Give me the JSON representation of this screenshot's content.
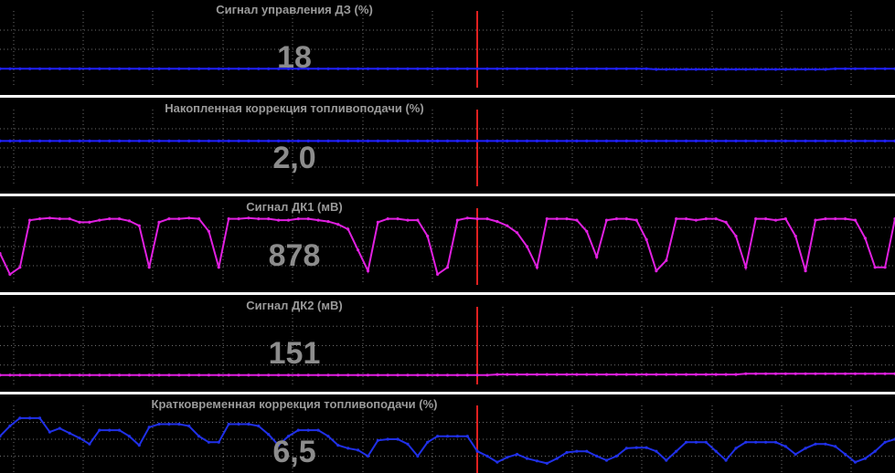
{
  "colors": {
    "background": "#000000",
    "grid": "#6e6e6e",
    "separator": "#ffffff",
    "cursor": "#e02020",
    "label_text": "#9a9a9a",
    "value_text": "#8c8c8c"
  },
  "panels": [
    {
      "title": "Сигнал управления ДЗ  (%)",
      "value": "18",
      "trace_color": "#2020ff",
      "trace": [
        0.22,
        0.22,
        0.22,
        0.22,
        0.22,
        0.22,
        0.22,
        0.22,
        0.22,
        0.22,
        0.22,
        0.22,
        0.22,
        0.22,
        0.22,
        0.22,
        0.22,
        0.22,
        0.22,
        0.22,
        0.22,
        0.22,
        0.22,
        0.22,
        0.22,
        0.22,
        0.22,
        0.22,
        0.22,
        0.22,
        0.22,
        0.22,
        0.22,
        0.22,
        0.22,
        0.22,
        0.22,
        0.22,
        0.22,
        0.22,
        0.22,
        0.22,
        0.22,
        0.22,
        0.22,
        0.22,
        0.22,
        0.22,
        0.22,
        0.22,
        0.22,
        0.22,
        0.22,
        0.22,
        0.22,
        0.22,
        0.22,
        0.22,
        0.22,
        0.22,
        0.22,
        0.22,
        0.22,
        0.22,
        0.22,
        0.22,
        0.21,
        0.21,
        0.21,
        0.21,
        0.21,
        0.21,
        0.21,
        0.21,
        0.21,
        0.21,
        0.21,
        0.21,
        0.21,
        0.21,
        0.21,
        0.21,
        0.21,
        0.21,
        0.22,
        0.22,
        0.22,
        0.22,
        0.22,
        0.22,
        0.22
      ]
    },
    {
      "title": "Накопленная коррекция топливоподачи  (%)",
      "value": "2,0",
      "trace_color": "#2020ff",
      "trace": [
        0.6,
        0.6,
        0.6,
        0.6,
        0.6,
        0.6,
        0.6,
        0.6,
        0.6,
        0.6,
        0.6,
        0.6,
        0.6,
        0.6,
        0.6,
        0.6,
        0.6,
        0.6,
        0.6,
        0.6,
        0.6,
        0.6,
        0.6,
        0.6,
        0.6,
        0.6,
        0.6,
        0.6,
        0.6,
        0.6,
        0.6,
        0.6,
        0.6,
        0.6,
        0.6,
        0.6,
        0.6,
        0.6,
        0.6,
        0.6,
        0.6,
        0.6,
        0.6,
        0.6,
        0.6,
        0.6,
        0.6,
        0.6,
        0.6,
        0.6,
        0.6,
        0.6,
        0.6,
        0.6,
        0.6,
        0.6,
        0.6,
        0.6,
        0.6,
        0.6,
        0.6,
        0.6,
        0.6,
        0.6,
        0.6,
        0.6,
        0.6,
        0.6,
        0.6,
        0.6,
        0.6,
        0.6,
        0.6,
        0.6,
        0.6,
        0.6,
        0.6,
        0.6,
        0.6,
        0.6,
        0.6,
        0.6,
        0.6,
        0.6,
        0.6,
        0.6,
        0.6,
        0.6,
        0.6,
        0.6,
        0.6
      ]
    },
    {
      "title": "Сигнал ДК1  (мВ)",
      "value": "878",
      "trace_color": "#e020e0",
      "trace": [
        0.4,
        0.1,
        0.2,
        0.88,
        0.9,
        0.91,
        0.9,
        0.9,
        0.85,
        0.85,
        0.88,
        0.9,
        0.9,
        0.87,
        0.8,
        0.2,
        0.85,
        0.9,
        0.9,
        0.91,
        0.9,
        0.72,
        0.2,
        0.9,
        0.9,
        0.91,
        0.9,
        0.9,
        0.88,
        0.88,
        0.9,
        0.9,
        0.88,
        0.86,
        0.82,
        0.75,
        0.45,
        0.15,
        0.85,
        0.9,
        0.9,
        0.88,
        0.88,
        0.65,
        0.1,
        0.2,
        0.88,
        0.91,
        0.9,
        0.9,
        0.86,
        0.8,
        0.7,
        0.5,
        0.2,
        0.9,
        0.9,
        0.9,
        0.88,
        0.72,
        0.35,
        0.88,
        0.9,
        0.9,
        0.88,
        0.6,
        0.15,
        0.3,
        0.9,
        0.9,
        0.88,
        0.9,
        0.9,
        0.85,
        0.65,
        0.2,
        0.9,
        0.9,
        0.88,
        0.9,
        0.65,
        0.15,
        0.88,
        0.9,
        0.9,
        0.9,
        0.88,
        0.62,
        0.2,
        0.2,
        0.9
      ]
    },
    {
      "title": "Сигнал ДК2  (мВ)",
      "value": "151",
      "trace_color": "#e020e0",
      "trace": [
        0.08,
        0.08,
        0.08,
        0.08,
        0.08,
        0.08,
        0.08,
        0.08,
        0.08,
        0.08,
        0.08,
        0.08,
        0.08,
        0.08,
        0.08,
        0.08,
        0.08,
        0.08,
        0.08,
        0.08,
        0.08,
        0.08,
        0.08,
        0.08,
        0.08,
        0.08,
        0.08,
        0.08,
        0.08,
        0.08,
        0.08,
        0.08,
        0.08,
        0.08,
        0.08,
        0.08,
        0.08,
        0.08,
        0.08,
        0.08,
        0.08,
        0.08,
        0.08,
        0.08,
        0.08,
        0.08,
        0.08,
        0.08,
        0.08,
        0.08,
        0.09,
        0.09,
        0.09,
        0.09,
        0.09,
        0.09,
        0.09,
        0.09,
        0.09,
        0.09,
        0.09,
        0.09,
        0.09,
        0.09,
        0.09,
        0.09,
        0.09,
        0.09,
        0.09,
        0.09,
        0.09,
        0.09,
        0.09,
        0.09,
        0.09,
        0.1,
        0.1,
        0.1,
        0.1,
        0.1,
        0.1,
        0.1,
        0.1,
        0.1,
        0.1,
        0.1,
        0.1,
        0.1,
        0.1,
        0.1,
        0.1
      ]
    },
    {
      "title": "Кратковременная коррекция топливоподачи  (%)",
      "value": "6,5",
      "trace_color": "#2030e8",
      "trace": [
        0.55,
        0.72,
        0.85,
        0.85,
        0.85,
        0.62,
        0.68,
        0.6,
        0.52,
        0.42,
        0.65,
        0.65,
        0.65,
        0.55,
        0.4,
        0.7,
        0.75,
        0.75,
        0.75,
        0.72,
        0.55,
        0.45,
        0.45,
        0.75,
        0.75,
        0.75,
        0.72,
        0.58,
        0.4,
        0.55,
        0.65,
        0.65,
        0.65,
        0.55,
        0.4,
        0.35,
        0.32,
        0.22,
        0.48,
        0.5,
        0.5,
        0.42,
        0.22,
        0.45,
        0.55,
        0.55,
        0.55,
        0.55,
        0.3,
        0.22,
        0.12,
        0.2,
        0.25,
        0.18,
        0.14,
        0.1,
        0.18,
        0.28,
        0.3,
        0.3,
        0.22,
        0.15,
        0.22,
        0.35,
        0.36,
        0.36,
        0.3,
        0.15,
        0.3,
        0.45,
        0.45,
        0.45,
        0.3,
        0.15,
        0.35,
        0.45,
        0.45,
        0.45,
        0.45,
        0.38,
        0.25,
        0.35,
        0.42,
        0.42,
        0.38,
        0.25,
        0.12,
        0.18,
        0.3,
        0.45,
        0.5
      ]
    }
  ]
}
